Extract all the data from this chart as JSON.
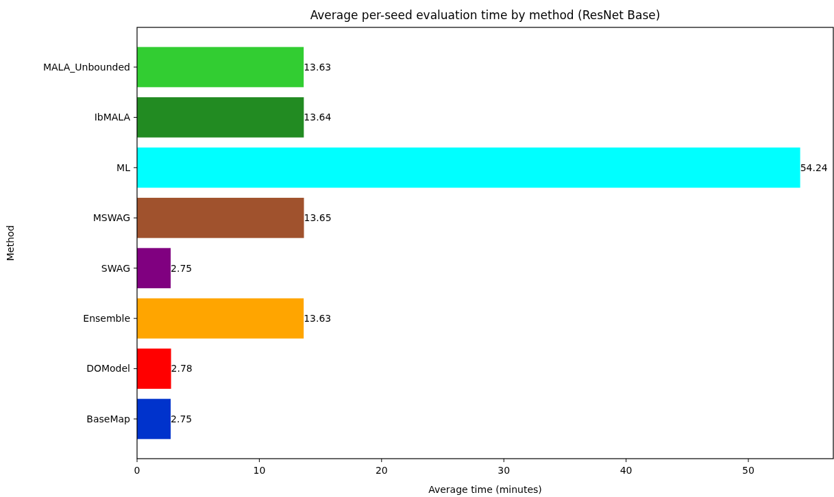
{
  "chart_data": {
    "type": "bar",
    "orientation": "horizontal",
    "title": "Average per-seed evaluation time by method (ResNet Base)",
    "xlabel": "Average time (minutes)",
    "ylabel": "Method",
    "categories": [
      "MALA_Unbounded",
      "IbMALA",
      "ML",
      "MSWAG",
      "SWAG",
      "Ensemble",
      "DOModel",
      "BaseMap"
    ],
    "values": [
      13.63,
      13.64,
      54.24,
      13.65,
      2.75,
      13.63,
      2.78,
      2.75
    ],
    "colors": [
      "#32cd32",
      "#228b22",
      "#00ffff",
      "#a0522d",
      "#800080",
      "#ffa500",
      "#ff0000",
      "#0033cc"
    ],
    "xlim": [
      0,
      56.95
    ],
    "xticks": [
      0,
      10,
      20,
      30,
      40,
      50
    ],
    "data_labels": true
  }
}
